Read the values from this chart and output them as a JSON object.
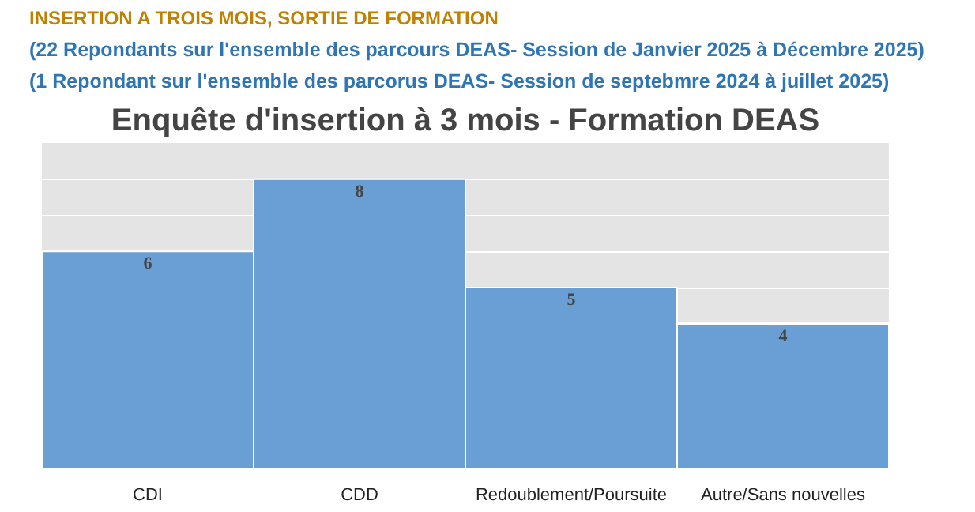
{
  "chart_data": {
    "type": "bar",
    "title": "Enquête d'insertion à 3 mois - Formation DEAS",
    "annotations": [
      "INSERTION A TROIS MOIS, SORTIE DE FORMATION",
      "(22 Repondants sur l'ensemble des parcours DEAS- Session de Janvier 2025 à Décembre 2025)",
      "(1 Repondant sur l'ensemble des parcorus DEAS- Session de septebmre 2024 à juillet 2025)"
    ],
    "categories": [
      "CDI",
      "CDD",
      "Redoublement/Poursuite",
      "Autre/Sans nouvelles"
    ],
    "values": [
      6,
      8,
      5,
      4
    ],
    "color": "#6a9fd6",
    "data_labels": true,
    "ylim": [
      0,
      9
    ],
    "yticks": [
      {
        "value": 0,
        "label": null
      },
      {
        "value": 1,
        "label": null
      },
      {
        "value": 2,
        "label": null
      },
      {
        "value": 3,
        "label": null
      },
      {
        "value": 4,
        "label": null
      },
      {
        "value": 5,
        "label": null
      },
      {
        "value": 6,
        "label": null
      },
      {
        "value": 7,
        "label": null
      },
      {
        "value": 8,
        "label": null
      },
      {
        "value": 9,
        "label": null
      }
    ],
    "grid": "y",
    "tick_labels": "x"
  }
}
